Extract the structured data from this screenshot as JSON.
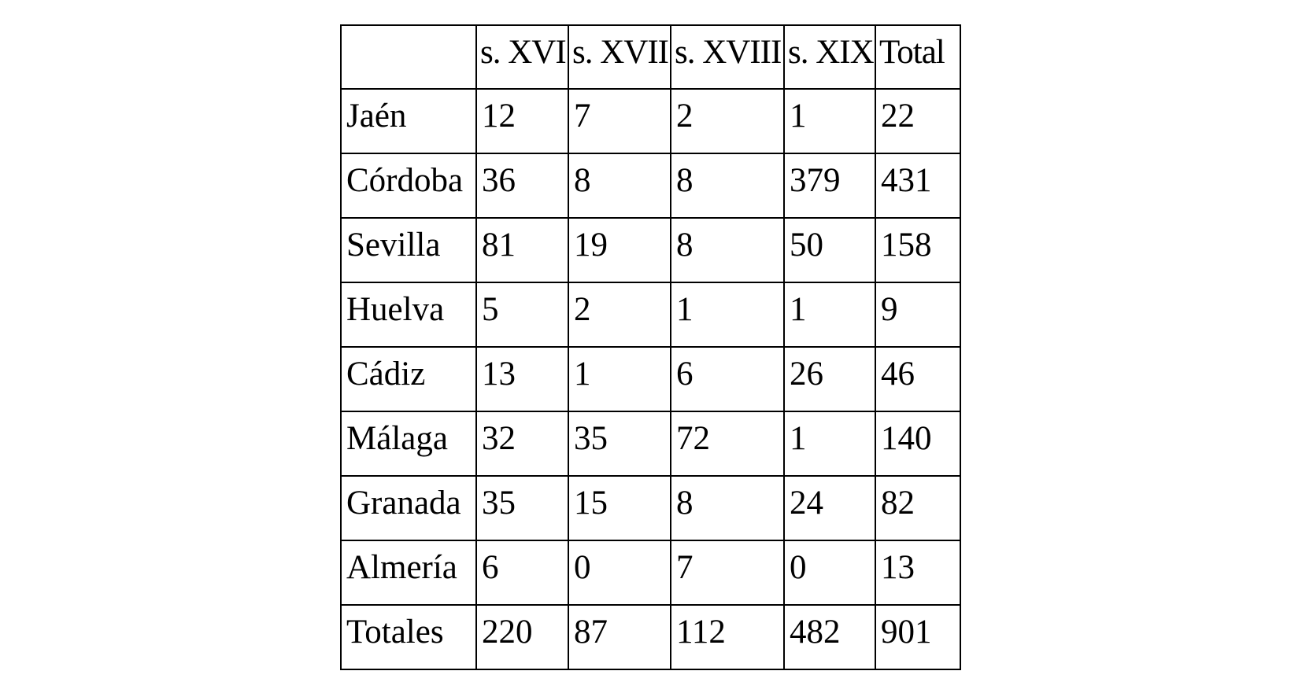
{
  "table": {
    "headers": [
      "",
      "s. XVI",
      "s. XVII",
      "s. XVIII",
      "s. XIX",
      "Total"
    ],
    "rows": [
      [
        "Jaén",
        "12",
        "7",
        "2",
        "1",
        "22"
      ],
      [
        "Córdoba",
        "36",
        "8",
        "8",
        "379",
        "431"
      ],
      [
        "Sevilla",
        "81",
        "19",
        "8",
        "50",
        "158"
      ],
      [
        "Huelva",
        "5",
        "2",
        "1",
        "1",
        "9"
      ],
      [
        "Cádiz",
        "13",
        "1",
        "6",
        "26",
        "46"
      ],
      [
        "Málaga",
        "32",
        "35",
        "72",
        "1",
        "140"
      ],
      [
        "Granada",
        "35",
        "15",
        "8",
        "24",
        "82"
      ],
      [
        "Almería",
        "6",
        "0",
        "7",
        "0",
        "13"
      ],
      [
        "Totales",
        "220",
        "87",
        "112",
        "482",
        "901"
      ]
    ]
  }
}
